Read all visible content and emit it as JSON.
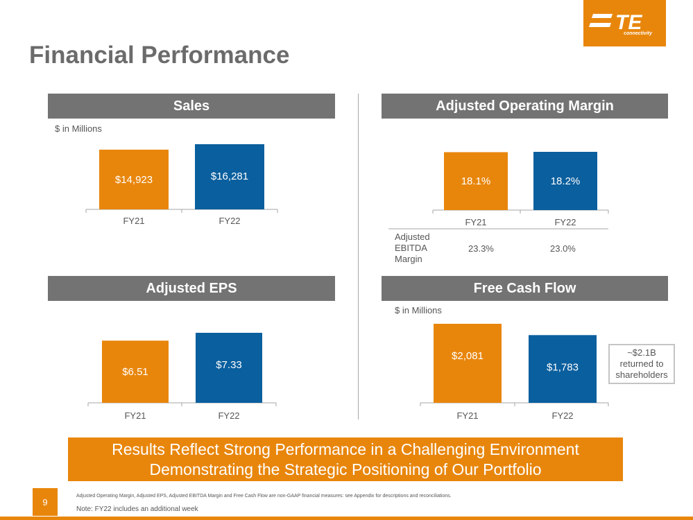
{
  "page": {
    "title": "Financial Performance",
    "page_number": "9",
    "banner_line1": "Results Reflect Strong Performance in a Challenging Environment",
    "banner_line2": "Demonstrating the Strategic Positioning of Our Portfolio",
    "footnote": "Adjusted Operating Margin, Adjusted EPS, Adjusted EBITDA Margin and Free Cash Flow are non-GAAP financial measures: see Appendix for descriptions and reconciliations.",
    "note_label": "Note:",
    "note_text": " FY22 includes an additional week"
  },
  "logo": {
    "text": "TE",
    "subtext": "connectivity"
  },
  "colors": {
    "orange": "#E8860C",
    "blue": "#0A5F9E",
    "header_gray": "#737373"
  },
  "sales": {
    "header": "Sales",
    "unit": "$ in Millions"
  },
  "margin": {
    "header": "Adjusted Operating Margin",
    "ebitda_label_lines": [
      "Adjusted",
      "EBITDA",
      "Margin"
    ],
    "ebitda_values": [
      "23.3%",
      "23.0%"
    ]
  },
  "eps": {
    "header": "Adjusted EPS"
  },
  "fcf": {
    "header": "Free Cash Flow",
    "unit": "$ in Millions",
    "callout_lines": [
      "~$2.1B",
      "returned to",
      "shareholders"
    ]
  },
  "chart_data": [
    {
      "type": "bar",
      "title": "Sales",
      "ylabel": "$ in Millions",
      "categories": [
        "FY21",
        "FY22"
      ],
      "values": [
        14923,
        16281
      ],
      "labels": [
        "$14,923",
        "$16,281"
      ],
      "colors": [
        "#E8860C",
        "#0A5F9E"
      ]
    },
    {
      "type": "bar",
      "title": "Adjusted Operating Margin",
      "categories": [
        "FY21",
        "FY22"
      ],
      "values": [
        18.1,
        18.2
      ],
      "labels": [
        "18.1%",
        "18.2%"
      ],
      "colors": [
        "#E8860C",
        "#0A5F9E"
      ]
    },
    {
      "type": "bar",
      "title": "Adjusted EPS",
      "categories": [
        "FY21",
        "FY22"
      ],
      "values": [
        6.51,
        7.33
      ],
      "labels": [
        "$6.51",
        "$7.33"
      ],
      "colors": [
        "#E8860C",
        "#0A5F9E"
      ]
    },
    {
      "type": "bar",
      "title": "Free Cash Flow",
      "ylabel": "$ in Millions",
      "categories": [
        "FY21",
        "FY22"
      ],
      "values": [
        2081,
        1783
      ],
      "labels": [
        "$2,081",
        "$1,783"
      ],
      "colors": [
        "#E8860C",
        "#0A5F9E"
      ]
    }
  ]
}
